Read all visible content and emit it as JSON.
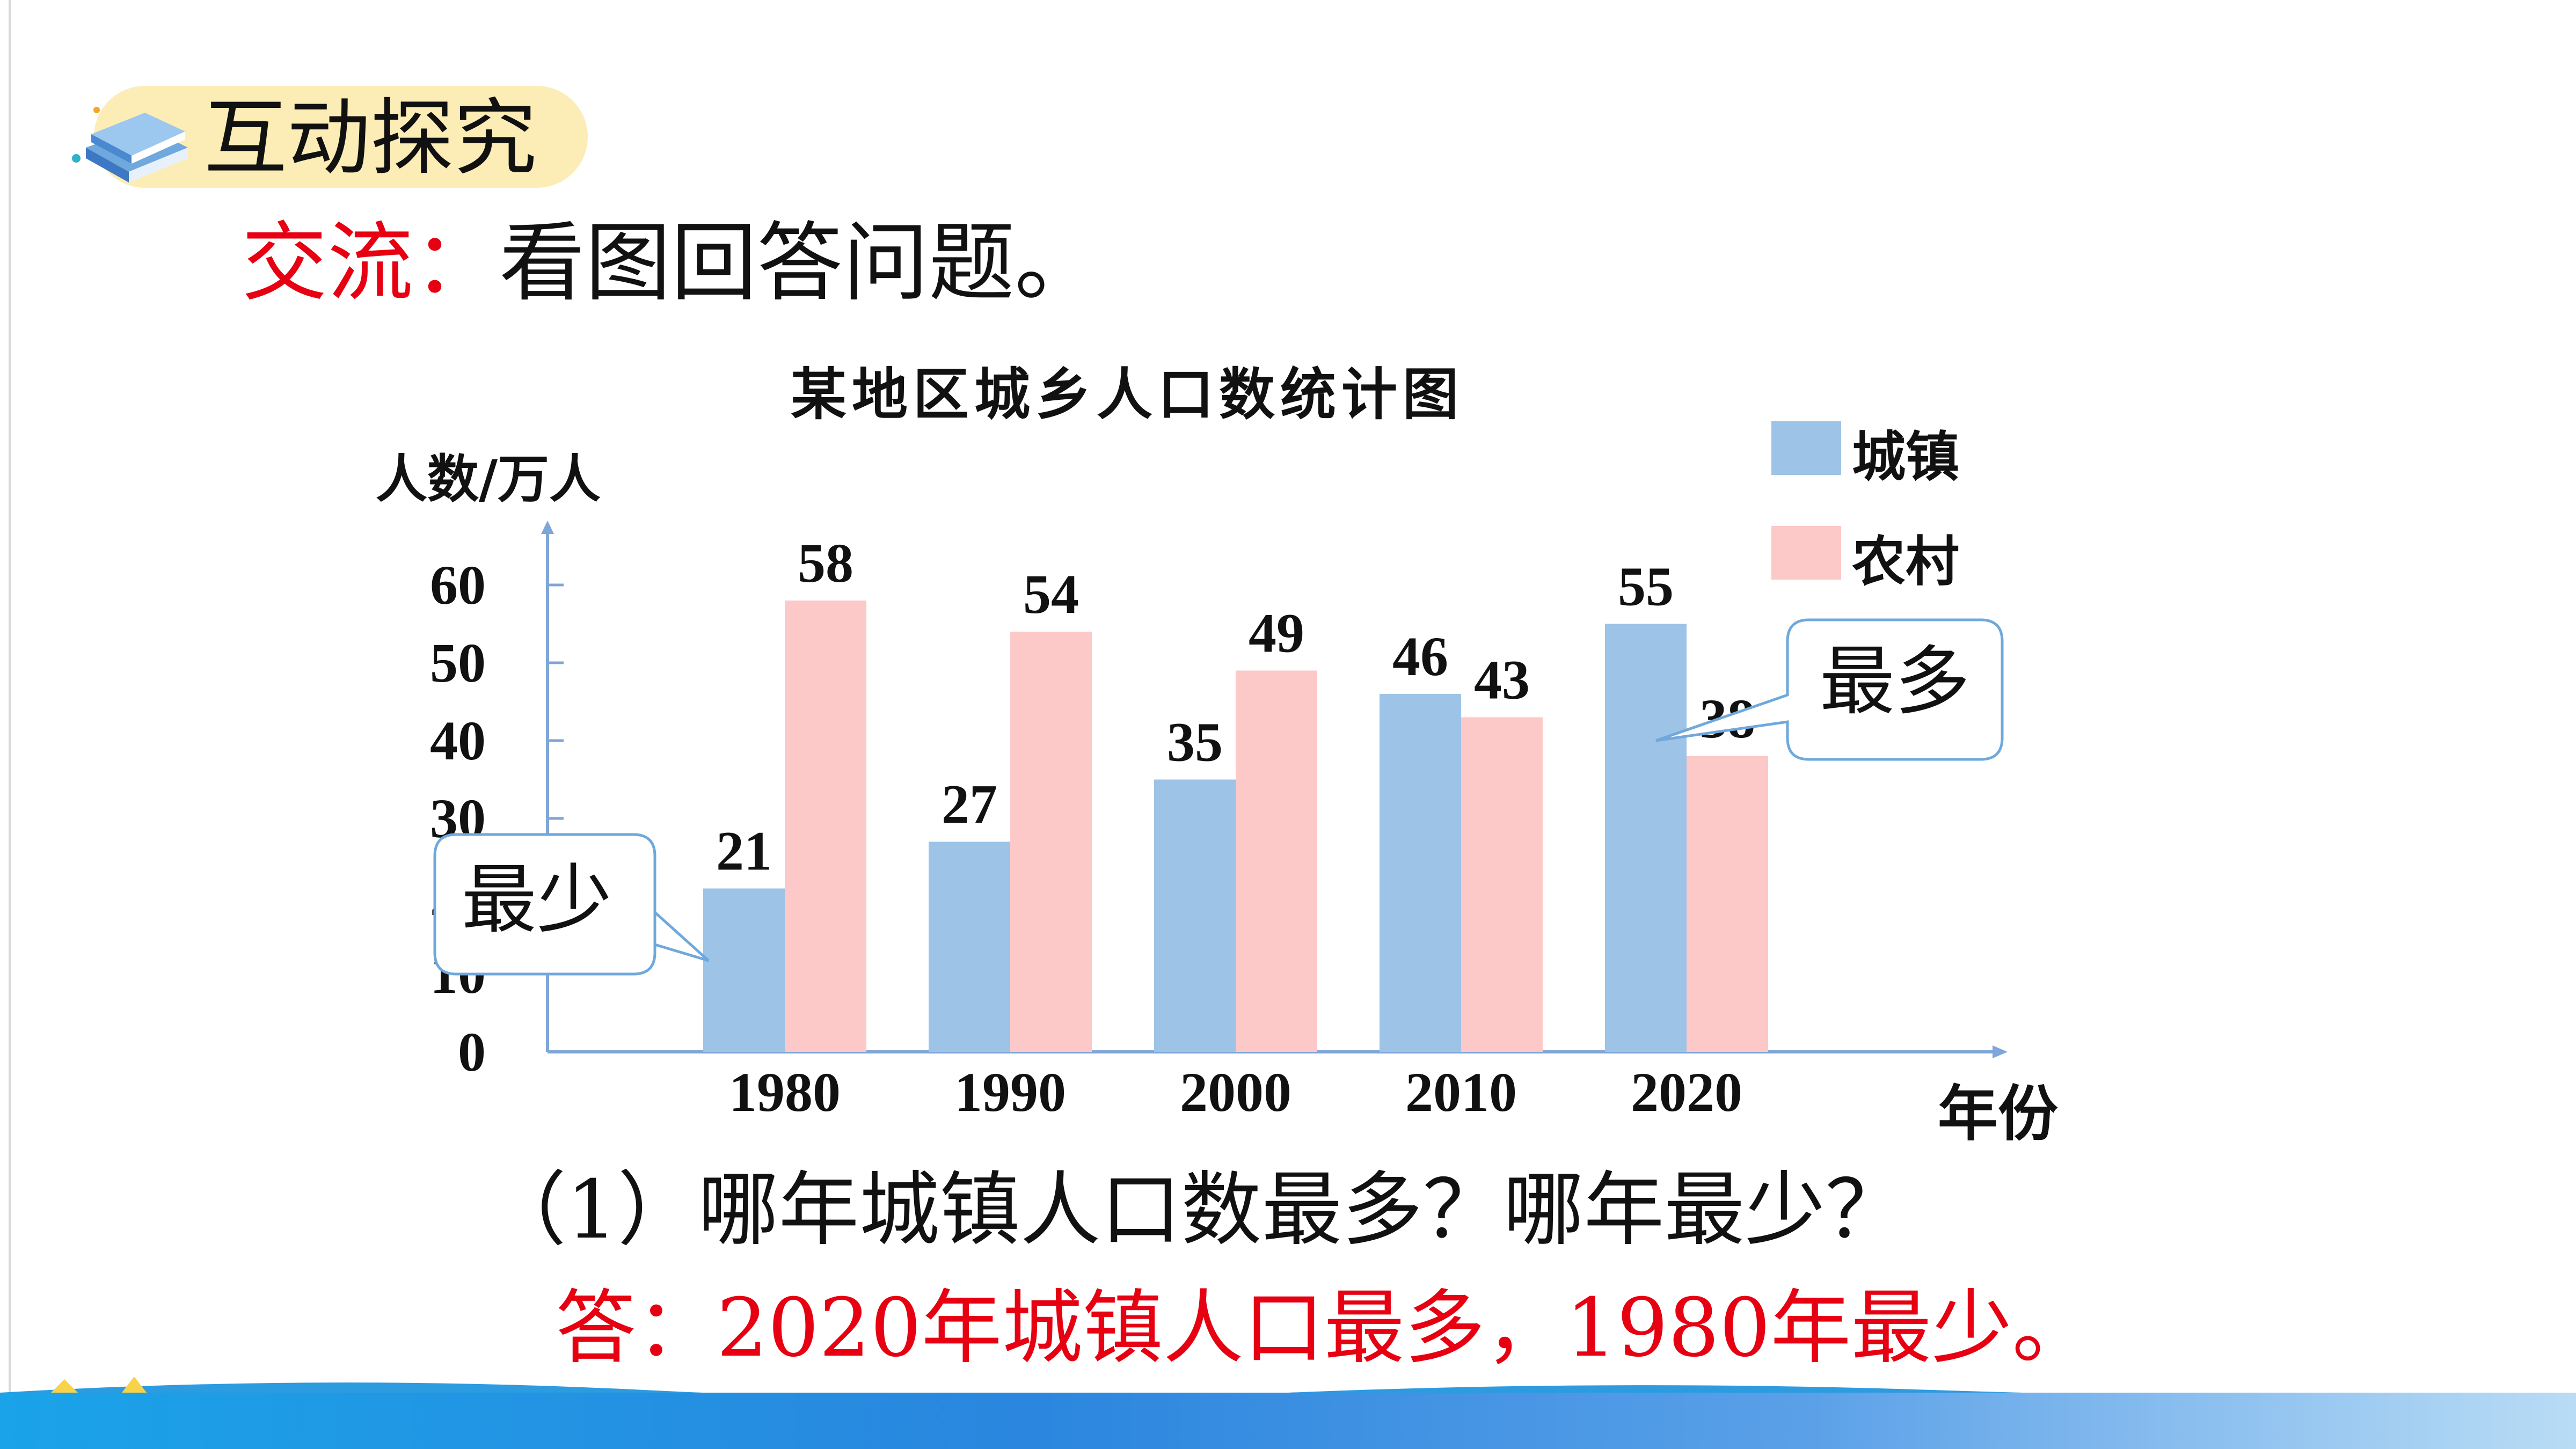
{
  "header": {
    "title": "互动探究",
    "icon": "book-stack-icon"
  },
  "prompt": {
    "prefix": "交流：",
    "text": "看图回答问题。"
  },
  "colors": {
    "urban": "#9dc3e6",
    "rural": "#fcc8c8",
    "answer": "#e60012",
    "pill": "#fcecb5"
  },
  "chart_data": {
    "type": "bar",
    "title": "某地区城乡人口数统计图",
    "ylabel": "人数/万人",
    "xlabel": "年份",
    "categories": [
      "1980",
      "1990",
      "2000",
      "2010",
      "2020"
    ],
    "series": [
      {
        "name": "城镇",
        "values": [
          21,
          27,
          35,
          46,
          55
        ]
      },
      {
        "name": "农村",
        "values": [
          58,
          54,
          49,
          43,
          38
        ]
      }
    ],
    "ylim": [
      0,
      60
    ],
    "yticks": [
      "0",
      "10",
      "20",
      "30",
      "40",
      "50",
      "60"
    ],
    "legend_position": "top-right",
    "grid": false
  },
  "callouts": {
    "most": "最多",
    "least": "最少"
  },
  "question": "（1）哪年城镇人口数最多？哪年最少？",
  "answer": "答：2020年城镇人口最多，1980年最少。"
}
